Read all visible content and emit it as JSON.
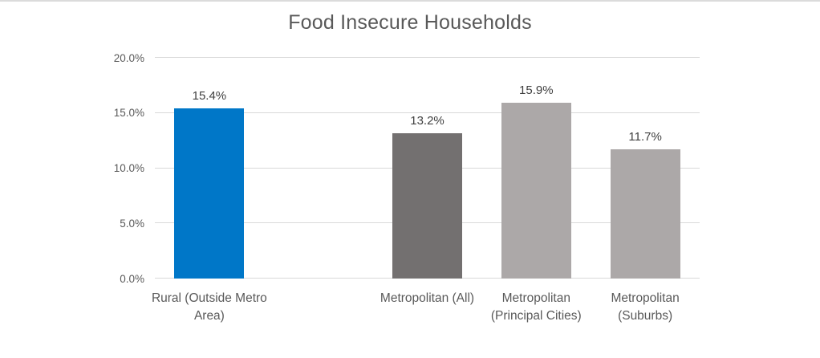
{
  "chart_data": {
    "type": "bar",
    "title": "Food Insecure Households",
    "categories": [
      "Rural (Outside Metro Area)",
      "Metropolitan (All)",
      "Metropolitan (Principal Cities)",
      "Metropolitan (Suburbs)"
    ],
    "values": [
      15.4,
      13.2,
      15.9,
      11.7
    ],
    "data_labels": [
      "15.4%",
      "13.2%",
      "15.9%",
      "11.7%"
    ],
    "bar_colors": [
      "#0077C8",
      "#737070",
      "#ACA8A8",
      "#ACA8A8"
    ],
    "bar_centers_pct": [
      10,
      50,
      70,
      90
    ],
    "xlabel": "",
    "ylabel": "",
    "ylim": [
      0,
      20
    ],
    "y_ticks": [
      0,
      5,
      10,
      15,
      20
    ],
    "y_tick_labels": [
      "0.0%",
      "5.0%",
      "10.0%",
      "15.0%",
      "20.0%"
    ],
    "grid": true,
    "legend": false
  },
  "colors": {
    "background": "#FFFFFF",
    "top_border": "#DBDBDB",
    "title_text": "#595959",
    "axis_text": "#595959",
    "data_label_text": "#404040",
    "gridline": "#D9D9D9",
    "accent_blue": "#0077C8"
  }
}
